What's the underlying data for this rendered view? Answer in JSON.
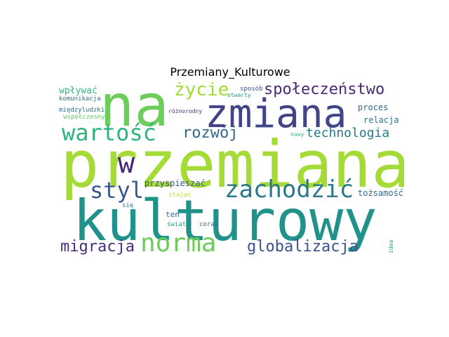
{
  "title": "Przemiany_Kulturowe",
  "words": [
    {
      "text": "przemiana",
      "color": "#a5db36"
    },
    {
      "text": "kulturowy",
      "color": "#21918c"
    },
    {
      "text": "na",
      "color": "#6ccd5a"
    },
    {
      "text": "zmiana",
      "color": "#414487"
    },
    {
      "text": "wartość",
      "color": "#2fb47c"
    },
    {
      "text": "życie",
      "color": "#a5db36"
    },
    {
      "text": "społeczeństwo",
      "color": "#482878"
    },
    {
      "text": "w",
      "color": "#482878"
    },
    {
      "text": "styl",
      "color": "#38598c"
    },
    {
      "text": "zachodzić",
      "color": "#2a788e"
    },
    {
      "text": "rozwój",
      "color": "#31688e"
    },
    {
      "text": "technologia",
      "color": "#2a788e"
    },
    {
      "text": "norma",
      "color": "#6ccd5a"
    },
    {
      "text": "migracja",
      "color": "#472d7b"
    },
    {
      "text": "globalizacja",
      "color": "#3b528b"
    },
    {
      "text": "wpływać",
      "color": "#35b779"
    },
    {
      "text": "proces",
      "color": "#31688e"
    },
    {
      "text": "relacja",
      "color": "#2c728e"
    },
    {
      "text": "przyspieszać",
      "color": "#3b528b"
    },
    {
      "text": "tożsamość",
      "color": "#31688e"
    },
    {
      "text": "sposób",
      "color": "#3b528b"
    },
    {
      "text": "komunikacja",
      "color": "#2d708e"
    },
    {
      "text": "międzyludzki",
      "color": "#2c728e"
    },
    {
      "text": "współczesny",
      "color": "#5ec962"
    },
    {
      "text": "różnorodny",
      "color": "#482878"
    },
    {
      "text": "otwarty",
      "color": "#21918c"
    },
    {
      "text": "nowy",
      "color": "#35b779"
    },
    {
      "text": "stajać",
      "color": "#c8e020"
    },
    {
      "text": "się",
      "color": "#2a788e"
    },
    {
      "text": "ten",
      "color": "#31688e"
    },
    {
      "text": "świat",
      "color": "#1fa187"
    },
    {
      "text": "coraz",
      "color": "#31688e"
    },
    {
      "text": "idea",
      "color": "#22a884"
    }
  ]
}
